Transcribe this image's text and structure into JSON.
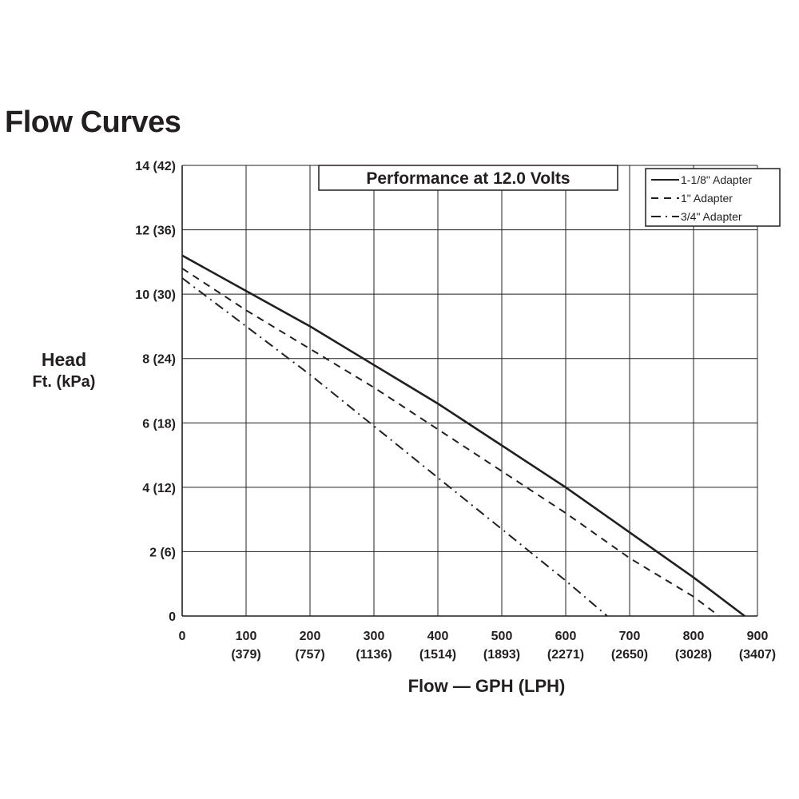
{
  "page": {
    "title": "Flow Curves"
  },
  "chart_data": {
    "type": "line",
    "title": "Performance at 12.0 Volts",
    "xlabel": "Flow — GPH (LPH)",
    "ylabel": {
      "line1": "Head",
      "line2": "Ft. (kPa)"
    },
    "xlim": [
      0,
      900
    ],
    "ylim": [
      0,
      14
    ],
    "grid": true,
    "legend_position": "top-right",
    "x_ticks": [
      {
        "value": 0,
        "label": "0",
        "sub": ""
      },
      {
        "value": 100,
        "label": "100",
        "sub": "(379)"
      },
      {
        "value": 200,
        "label": "200",
        "sub": "(757)"
      },
      {
        "value": 300,
        "label": "300",
        "sub": "(1136)"
      },
      {
        "value": 400,
        "label": "400",
        "sub": "(1514)"
      },
      {
        "value": 500,
        "label": "500",
        "sub": "(1893)"
      },
      {
        "value": 600,
        "label": "600",
        "sub": "(2271)"
      },
      {
        "value": 700,
        "label": "700",
        "sub": "(2650)"
      },
      {
        "value": 800,
        "label": "800",
        "sub": "(3028)"
      },
      {
        "value": 900,
        "label": "900",
        "sub": "(3407)"
      }
    ],
    "y_ticks": [
      {
        "value": 0,
        "label": "0"
      },
      {
        "value": 2,
        "label": "2 (6)"
      },
      {
        "value": 4,
        "label": "4 (12)"
      },
      {
        "value": 6,
        "label": "6 (18)"
      },
      {
        "value": 8,
        "label": "8 (24)"
      },
      {
        "value": 10,
        "label": "10 (30)"
      },
      {
        "value": 12,
        "label": "12 (36)"
      },
      {
        "value": 14,
        "label": "14 (42)"
      }
    ],
    "series": [
      {
        "name": "1-1/8\" Adapter",
        "style": "solid",
        "x": [
          0,
          100,
          200,
          300,
          400,
          500,
          600,
          700,
          800,
          880
        ],
        "y": [
          11.2,
          10.1,
          9.0,
          7.8,
          6.6,
          5.3,
          4.0,
          2.6,
          1.2,
          0
        ]
      },
      {
        "name": "1\" Adapter",
        "style": "dashed",
        "x": [
          0,
          100,
          200,
          300,
          400,
          500,
          600,
          700,
          800,
          840
        ],
        "y": [
          10.8,
          9.5,
          8.3,
          7.1,
          5.8,
          4.5,
          3.2,
          1.8,
          0.6,
          0
        ]
      },
      {
        "name": "3/4\" Adapter",
        "style": "dashdot",
        "x": [
          0,
          100,
          200,
          300,
          400,
          500,
          600,
          665
        ],
        "y": [
          10.5,
          9.0,
          7.5,
          5.9,
          4.3,
          2.7,
          1.1,
          0
        ]
      }
    ]
  }
}
